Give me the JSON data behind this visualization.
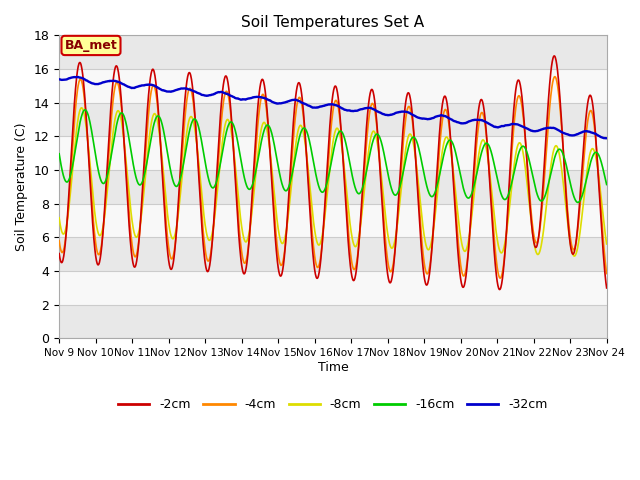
{
  "title": "Soil Temperatures Set A",
  "ylabel": "Soil Temperature (C)",
  "xlabel": "Time",
  "ylim": [
    0,
    18
  ],
  "yticks": [
    0,
    2,
    4,
    6,
    8,
    10,
    12,
    14,
    16,
    18
  ],
  "xtick_labels": [
    "Nov 9",
    "Nov 10",
    "Nov 11",
    "Nov 12",
    "Nov 13",
    "Nov 14",
    "Nov 15",
    "Nov 16",
    "Nov 17",
    "Nov 18",
    "Nov 19",
    "Nov 20",
    "Nov 21",
    "Nov 22",
    "Nov 23",
    "Nov 24"
  ],
  "colors": {
    "-2cm": "#cc0000",
    "-4cm": "#ff8800",
    "-8cm": "#dddd00",
    "-16cm": "#00cc00",
    "-32cm": "#0000cc"
  },
  "legend_labels": [
    "-2cm",
    "-4cm",
    "-8cm",
    "-16cm",
    "-32cm"
  ],
  "annotation_text": "BA_met",
  "annotation_box_color": "#ffff99",
  "annotation_box_edge": "#cc0000",
  "bg_color": "#ffffff",
  "plot_bg_color": "#ffffff",
  "linewidth": 1.2,
  "n_days": 15,
  "hours_per_day": 24
}
